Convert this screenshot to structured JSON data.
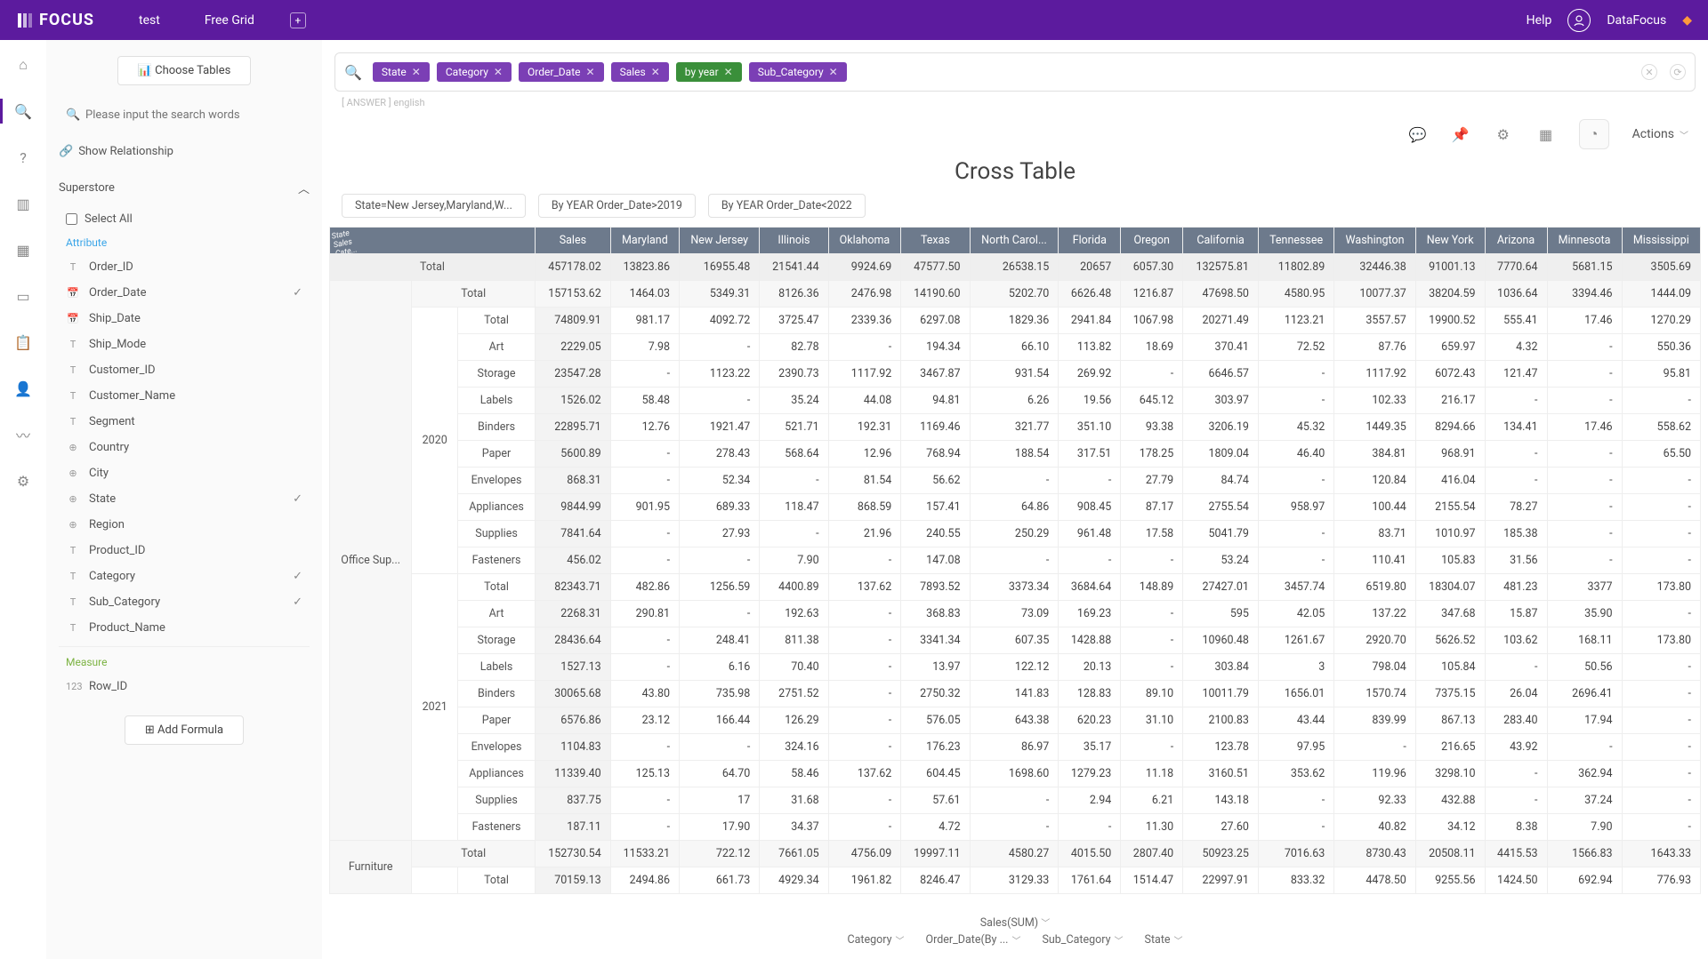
{
  "topbar": {
    "logo": "FOCUS",
    "nav": [
      "test",
      "Free Grid"
    ],
    "help": "Help",
    "user": "DataFocus"
  },
  "sidebar": {
    "choose_tables": "Choose Tables",
    "search_placeholder": "Please input the search words",
    "show_relationship": "Show Relationship",
    "datasource": "Superstore",
    "select_all": "Select All",
    "attribute_label": "Attribute",
    "measure_label": "Measure",
    "attributes": [
      {
        "icon": "T",
        "name": "Order_ID",
        "checked": false
      },
      {
        "icon": "📅",
        "name": "Order_Date",
        "checked": true
      },
      {
        "icon": "📅",
        "name": "Ship_Date",
        "checked": false
      },
      {
        "icon": "T",
        "name": "Ship_Mode",
        "checked": false
      },
      {
        "icon": "T",
        "name": "Customer_ID",
        "checked": false
      },
      {
        "icon": "T",
        "name": "Customer_Name",
        "checked": false
      },
      {
        "icon": "T",
        "name": "Segment",
        "checked": false
      },
      {
        "icon": "⊕",
        "name": "Country",
        "checked": false
      },
      {
        "icon": "⊕",
        "name": "City",
        "checked": false
      },
      {
        "icon": "⊕",
        "name": "State",
        "checked": true
      },
      {
        "icon": "⊕",
        "name": "Region",
        "checked": false
      },
      {
        "icon": "T",
        "name": "Product_ID",
        "checked": false
      },
      {
        "icon": "T",
        "name": "Category",
        "checked": true
      },
      {
        "icon": "T",
        "name": "Sub_Category",
        "checked": true
      },
      {
        "icon": "T",
        "name": "Product_Name",
        "checked": false
      }
    ],
    "measures": [
      {
        "icon": "123",
        "name": "Row_ID"
      }
    ],
    "add_formula": "Add Formula"
  },
  "query": {
    "pills": [
      {
        "label": "State",
        "green": false
      },
      {
        "label": "Category",
        "green": false
      },
      {
        "label": "Order_Date",
        "green": false
      },
      {
        "label": "Sales",
        "green": false
      },
      {
        "label": "by  year",
        "green": true
      },
      {
        "label": "Sub_Category",
        "green": false
      }
    ],
    "answer_line": "[ ANSWER ]  english"
  },
  "toolbar": {
    "actions": "Actions"
  },
  "title": "Cross Table",
  "filter_pills": [
    "State=New Jersey,Maryland,W...",
    "By YEAR Order_Date>2019",
    "By YEAR Order_Date<2022"
  ],
  "table": {
    "corner_labels": "State\nSales\nCate...",
    "state_cols": [
      "Sales",
      "Maryland",
      "New Jersey",
      "Illinois",
      "Oklahoma",
      "Texas",
      "North Carol...",
      "Florida",
      "Oregon",
      "California",
      "Tennessee",
      "Washington",
      "New York",
      "Arizona",
      "Minnesota",
      "Mississippi"
    ],
    "grand_total_label": "Total",
    "grand_total": [
      "457178.02",
      "13823.86",
      "16955.48",
      "21541.44",
      "9924.69",
      "47577.50",
      "26538.15",
      "20657",
      "6057.30",
      "132575.81",
      "11802.89",
      "32446.38",
      "91001.13",
      "7770.64",
      "5681.15",
      "3505.69"
    ],
    "groups": [
      {
        "category": "Office Sup...",
        "cat_total": [
          "157153.62",
          "1464.03",
          "5349.31",
          "8126.36",
          "2476.98",
          "14190.60",
          "5202.70",
          "6626.48",
          "1216.87",
          "47698.50",
          "4580.95",
          "10077.37",
          "38204.59",
          "1036.64",
          "3394.46",
          "1444.09"
        ],
        "years": [
          {
            "year": "2020",
            "year_total": [
              "74809.91",
              "981.17",
              "4092.72",
              "3725.47",
              "2339.36",
              "6297.08",
              "1829.36",
              "2941.84",
              "1067.98",
              "20271.49",
              "1123.21",
              "3557.57",
              "19900.52",
              "555.41",
              "17.46",
              "1270.29"
            ],
            "rows": [
              {
                "sub": "Art",
                "v": [
                  "2229.05",
                  "7.98",
                  "-",
                  "82.78",
                  "-",
                  "194.34",
                  "66.10",
                  "113.82",
                  "18.69",
                  "370.41",
                  "72.52",
                  "87.76",
                  "659.97",
                  "4.32",
                  "-",
                  "550.36"
                ]
              },
              {
                "sub": "Storage",
                "v": [
                  "23547.28",
                  "-",
                  "1123.22",
                  "2390.73",
                  "1117.92",
                  "3467.87",
                  "931.54",
                  "269.92",
                  "-",
                  "6646.57",
                  "-",
                  "1117.92",
                  "6072.43",
                  "121.47",
                  "-",
                  "95.81"
                ]
              },
              {
                "sub": "Labels",
                "v": [
                  "1526.02",
                  "58.48",
                  "-",
                  "35.24",
                  "44.08",
                  "94.81",
                  "6.26",
                  "19.56",
                  "645.12",
                  "303.97",
                  "-",
                  "102.33",
                  "216.17",
                  "-",
                  "-",
                  "-"
                ]
              },
              {
                "sub": "Binders",
                "v": [
                  "22895.71",
                  "12.76",
                  "1921.47",
                  "521.71",
                  "192.31",
                  "1169.46",
                  "321.77",
                  "351.10",
                  "93.38",
                  "3206.19",
                  "45.32",
                  "1449.35",
                  "8294.66",
                  "134.41",
                  "17.46",
                  "558.62"
                ]
              },
              {
                "sub": "Paper",
                "v": [
                  "5600.89",
                  "-",
                  "278.43",
                  "568.64",
                  "12.96",
                  "768.94",
                  "188.54",
                  "317.51",
                  "178.25",
                  "1809.04",
                  "46.40",
                  "384.81",
                  "968.91",
                  "-",
                  "-",
                  "65.50"
                ]
              },
              {
                "sub": "Envelopes",
                "v": [
                  "868.31",
                  "-",
                  "52.34",
                  "-",
                  "81.54",
                  "56.62",
                  "-",
                  "-",
                  "27.79",
                  "84.74",
                  "-",
                  "120.84",
                  "416.04",
                  "-",
                  "-",
                  "-"
                ]
              },
              {
                "sub": "Appliances",
                "v": [
                  "9844.99",
                  "901.95",
                  "689.33",
                  "118.47",
                  "868.59",
                  "157.41",
                  "64.86",
                  "908.45",
                  "87.17",
                  "2755.54",
                  "958.97",
                  "100.44",
                  "2155.54",
                  "78.27",
                  "-",
                  "-"
                ]
              },
              {
                "sub": "Supplies",
                "v": [
                  "7841.64",
                  "-",
                  "27.93",
                  "-",
                  "21.96",
                  "240.55",
                  "250.29",
                  "961.48",
                  "17.58",
                  "5041.79",
                  "-",
                  "83.71",
                  "1010.97",
                  "185.38",
                  "-",
                  "-"
                ]
              },
              {
                "sub": "Fasteners",
                "v": [
                  "456.02",
                  "-",
                  "-",
                  "7.90",
                  "-",
                  "147.08",
                  "-",
                  "-",
                  "-",
                  "53.24",
                  "-",
                  "110.41",
                  "105.83",
                  "31.56",
                  "-",
                  "-"
                ]
              }
            ]
          },
          {
            "year": "2021",
            "year_total": [
              "82343.71",
              "482.86",
              "1256.59",
              "4400.89",
              "137.62",
              "7893.52",
              "3373.34",
              "3684.64",
              "148.89",
              "27427.01",
              "3457.74",
              "6519.80",
              "18304.07",
              "481.23",
              "3377",
              "173.80"
            ],
            "rows": [
              {
                "sub": "Art",
                "v": [
                  "2268.31",
                  "290.81",
                  "-",
                  "192.63",
                  "-",
                  "368.83",
                  "73.09",
                  "169.23",
                  "-",
                  "595",
                  "42.05",
                  "137.22",
                  "347.68",
                  "15.87",
                  "35.90",
                  "-"
                ]
              },
              {
                "sub": "Storage",
                "v": [
                  "28436.64",
                  "-",
                  "248.41",
                  "811.38",
                  "-",
                  "3341.34",
                  "607.35",
                  "1428.88",
                  "-",
                  "10960.48",
                  "1261.67",
                  "2920.70",
                  "5626.52",
                  "103.62",
                  "168.11",
                  "173.80"
                ]
              },
              {
                "sub": "Labels",
                "v": [
                  "1527.13",
                  "-",
                  "6.16",
                  "70.40",
                  "-",
                  "13.97",
                  "122.12",
                  "20.13",
                  "-",
                  "303.84",
                  "3",
                  "798.04",
                  "105.84",
                  "-",
                  "50.56",
                  "-"
                ]
              },
              {
                "sub": "Binders",
                "v": [
                  "30065.68",
                  "43.80",
                  "735.98",
                  "2751.52",
                  "-",
                  "2750.32",
                  "141.83",
                  "128.83",
                  "89.10",
                  "10011.79",
                  "1656.01",
                  "1570.74",
                  "7375.15",
                  "26.04",
                  "2696.41",
                  "-"
                ]
              },
              {
                "sub": "Paper",
                "v": [
                  "6576.86",
                  "23.12",
                  "166.44",
                  "126.29",
                  "-",
                  "576.05",
                  "643.38",
                  "620.23",
                  "31.10",
                  "2100.83",
                  "43.44",
                  "839.99",
                  "867.13",
                  "283.40",
                  "17.94",
                  "-"
                ]
              },
              {
                "sub": "Envelopes",
                "v": [
                  "1104.83",
                  "-",
                  "-",
                  "324.16",
                  "-",
                  "176.23",
                  "86.97",
                  "35.17",
                  "-",
                  "123.78",
                  "97.95",
                  "-",
                  "216.65",
                  "43.92",
                  "-",
                  "-"
                ]
              },
              {
                "sub": "Appliances",
                "v": [
                  "11339.40",
                  "125.13",
                  "64.70",
                  "58.46",
                  "137.62",
                  "604.45",
                  "1698.60",
                  "1279.23",
                  "11.18",
                  "3160.51",
                  "353.62",
                  "119.96",
                  "3298.10",
                  "-",
                  "362.94",
                  "-"
                ]
              },
              {
                "sub": "Supplies",
                "v": [
                  "837.75",
                  "-",
                  "17",
                  "31.68",
                  "-",
                  "57.61",
                  "-",
                  "2.94",
                  "6.21",
                  "143.18",
                  "-",
                  "92.33",
                  "432.88",
                  "-",
                  "37.24",
                  "-"
                ]
              },
              {
                "sub": "Fasteners",
                "v": [
                  "187.11",
                  "-",
                  "17.90",
                  "34.37",
                  "-",
                  "4.72",
                  "-",
                  "-",
                  "11.30",
                  "27.60",
                  "-",
                  "40.82",
                  "34.12",
                  "8.38",
                  "7.90",
                  "-"
                ]
              }
            ]
          }
        ]
      },
      {
        "category": "Furniture",
        "cat_total": [
          "152730.54",
          "11533.21",
          "722.12",
          "7661.05",
          "4756.09",
          "19997.11",
          "4580.27",
          "4015.50",
          "2807.40",
          "50923.25",
          "7016.63",
          "8730.43",
          "20508.11",
          "4415.53",
          "1566.83",
          "1643.33"
        ],
        "years": [
          {
            "year": "",
            "year_total": [
              "70159.13",
              "2494.86",
              "661.73",
              "4929.34",
              "1961.82",
              "8246.47",
              "3129.33",
              "1761.64",
              "1514.47",
              "22997.91",
              "833.32",
              "4478.50",
              "9255.56",
              "1424.50",
              "692.94",
              "776.93"
            ],
            "rows": []
          }
        ]
      }
    ]
  },
  "footer": {
    "summary": "Sales(SUM)",
    "dims": [
      "Category",
      "Order_Date(By ...",
      "Sub_Category",
      "State"
    ]
  }
}
